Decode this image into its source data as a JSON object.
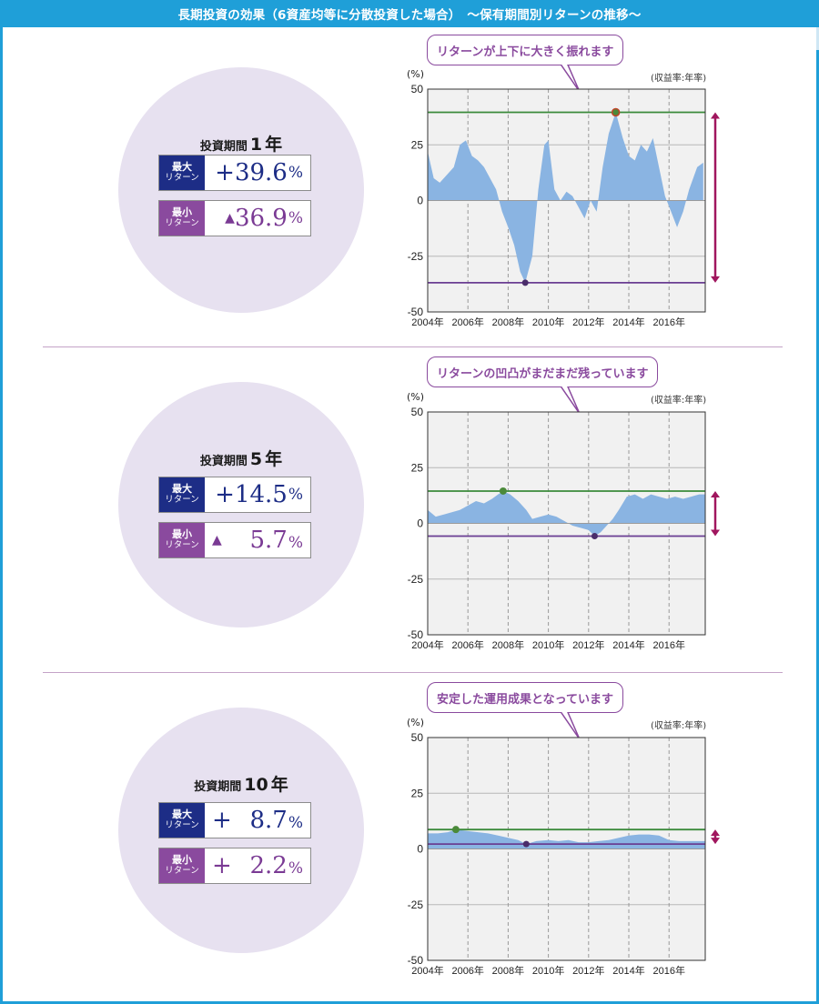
{
  "page_title": "長期投資の効果（6資産均等に分散投資した場合）　～保有期間別リターンの推移～",
  "labels": {
    "period_prefix": "投資期間",
    "max_label_1": "最大",
    "max_label_2": "リターン",
    "min_label_1": "最小",
    "min_label_2": "リターン",
    "y_unit": "(%)",
    "rate_note": "(収益率:年率)"
  },
  "colors": {
    "area": "#8ab4e2",
    "max_line": "#3a8a3a",
    "min_line": "#6a3e92",
    "range_arrow": "#a0165e",
    "max_dot": "#4b8a3a",
    "min_dot": "#4a2d6a"
  },
  "sections": [
    {
      "period_num": "1",
      "period_unit": "年",
      "max_sign": "+",
      "max_value": "39.6",
      "min_sign": "▲",
      "min_value": "36.9",
      "pct": "%",
      "bubble": "リターンが上下に大きく振れます"
    },
    {
      "period_num": "5",
      "period_unit": "年",
      "max_sign": "+",
      "max_value": "14.5",
      "min_sign": "▲",
      "min_value": "5.7",
      "pct": "%",
      "bubble": "リターンの凹凸がまだまだ残っています"
    },
    {
      "period_num": "10",
      "period_unit": "年",
      "max_sign": "+",
      "max_value": "8.7",
      "min_sign": "+",
      "min_value": "2.2",
      "pct": "%",
      "bubble": "安定した運用成果となっています"
    }
  ],
  "chart_data": [
    {
      "type": "area",
      "title": "投資期間1年",
      "ylabel": "(%)",
      "ylim": [
        -50,
        50
      ],
      "xlim": [
        2004,
        2017.8
      ],
      "yticks": [
        "50",
        "25",
        "0",
        "-25",
        "-50"
      ],
      "xticks": [
        "2004年",
        "2006年",
        "2008年",
        "2010年",
        "2012年",
        "2014年",
        "2016年"
      ],
      "max_value": 39.6,
      "min_value": -36.9,
      "max_x": 2013.35,
      "min_x": 2008.85,
      "x": [
        2004.0,
        2004.3,
        2004.6,
        2005.0,
        2005.3,
        2005.6,
        2005.9,
        2006.2,
        2006.5,
        2006.8,
        2007.1,
        2007.4,
        2007.7,
        2008.0,
        2008.3,
        2008.6,
        2008.85,
        2009.2,
        2009.5,
        2009.8,
        2010.0,
        2010.3,
        2010.6,
        2010.9,
        2011.2,
        2011.5,
        2011.8,
        2012.1,
        2012.4,
        2012.7,
        2013.0,
        2013.35,
        2013.7,
        2014.0,
        2014.3,
        2014.6,
        2014.9,
        2015.2,
        2015.5,
        2015.8,
        2016.1,
        2016.4,
        2016.7,
        2017.0,
        2017.4,
        2017.7
      ],
      "values": [
        22,
        10,
        8,
        12,
        15,
        25,
        27,
        20,
        18,
        15,
        10,
        5,
        -5,
        -12,
        -20,
        -32,
        -36.9,
        -25,
        5,
        25,
        27,
        5,
        0,
        4,
        2,
        -3,
        -8,
        0,
        -5,
        15,
        30,
        39.6,
        28,
        20,
        18,
        25,
        22,
        28,
        15,
        2,
        -5,
        -12,
        -5,
        5,
        15,
        17
      ]
    },
    {
      "type": "area",
      "title": "投資期間5年",
      "ylabel": "(%)",
      "ylim": [
        -50,
        50
      ],
      "xlim": [
        2004,
        2017.8
      ],
      "yticks": [
        "50",
        "25",
        "0",
        "-25",
        "-50"
      ],
      "xticks": [
        "2004年",
        "2006年",
        "2008年",
        "2010年",
        "2012年",
        "2014年",
        "2016年"
      ],
      "max_value": 14.5,
      "min_value": -5.7,
      "max_x": 2007.75,
      "min_x": 2012.3,
      "x": [
        2004.0,
        2004.4,
        2004.8,
        2005.2,
        2005.6,
        2006.0,
        2006.4,
        2006.8,
        2007.2,
        2007.5,
        2007.75,
        2008.1,
        2008.5,
        2008.9,
        2009.2,
        2009.6,
        2010.0,
        2010.4,
        2010.8,
        2011.2,
        2011.6,
        2012.0,
        2012.3,
        2012.6,
        2012.9,
        2013.2,
        2013.5,
        2013.9,
        2014.3,
        2014.7,
        2015.1,
        2015.5,
        2015.9,
        2016.3,
        2016.7,
        2017.1,
        2017.5,
        2017.8
      ],
      "values": [
        6,
        3,
        4,
        5,
        6,
        8,
        10,
        9,
        11,
        13,
        14.5,
        13,
        10,
        6,
        2,
        3,
        4,
        3,
        1,
        -1,
        -2,
        -3,
        -5.7,
        -4,
        -1,
        2,
        6,
        12,
        13,
        11,
        13,
        12,
        11,
        12,
        11,
        12,
        13,
        13
      ]
    },
    {
      "type": "area",
      "title": "投資期間10年",
      "ylabel": "(%)",
      "ylim": [
        -50,
        50
      ],
      "xlim": [
        2004,
        2017.8
      ],
      "yticks": [
        "50",
        "25",
        "0",
        "-25",
        "-50"
      ],
      "xticks": [
        "2004年",
        "2006年",
        "2008年",
        "2010年",
        "2012年",
        "2014年",
        "2016年"
      ],
      "max_value": 8.7,
      "min_value": 2.2,
      "max_x": 2005.4,
      "min_x": 2008.9,
      "x": [
        2004.0,
        2004.5,
        2005.0,
        2005.4,
        2006.0,
        2006.5,
        2007.0,
        2007.5,
        2008.0,
        2008.5,
        2008.9,
        2009.4,
        2010.0,
        2010.5,
        2011.0,
        2011.5,
        2012.0,
        2012.5,
        2013.0,
        2013.5,
        2014.0,
        2014.5,
        2015.0,
        2015.5,
        2016.0,
        2016.5,
        2017.0,
        2017.5,
        2017.8
      ],
      "values": [
        7,
        7,
        7.5,
        8.7,
        8,
        7.5,
        7,
        6,
        5,
        4,
        2.2,
        3.5,
        4,
        3.5,
        4,
        3,
        3,
        3.5,
        4,
        5,
        6,
        6.5,
        6.5,
        6,
        4,
        3.5,
        3.5,
        3.5,
        3.5
      ]
    }
  ]
}
